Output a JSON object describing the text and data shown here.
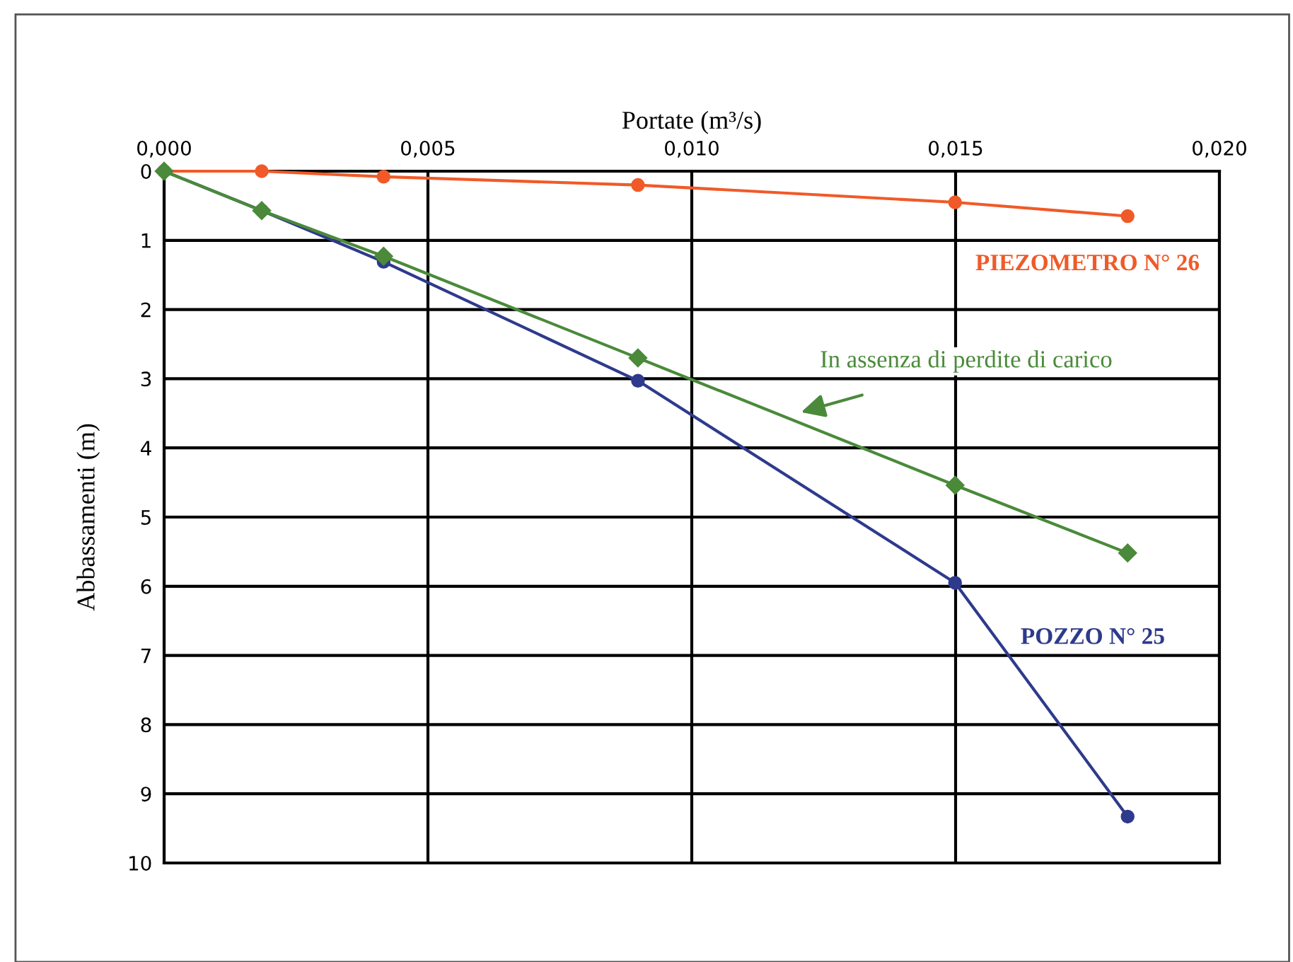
{
  "chart_data": {
    "type": "line",
    "xlabel": "Portate (m³/s)",
    "ylabel": "Abbassamenti (m)",
    "xlim": [
      0,
      0.02
    ],
    "xticks": [
      {
        "value": 0,
        "label": "0,000"
      },
      {
        "value": 0.005,
        "label": "0,005"
      },
      {
        "value": 0.01,
        "label": "0,010"
      },
      {
        "value": 0.015,
        "label": "0,015"
      },
      {
        "value": 0.02,
        "label": "0,020"
      }
    ],
    "ylim": [
      10,
      0
    ],
    "yticks": [
      0,
      1,
      2,
      3,
      4,
      5,
      6,
      7,
      8,
      9,
      10
    ],
    "grid": true,
    "legend": false,
    "line_style": "solid",
    "x": [
      0,
      0.00185,
      0.00416,
      0.00898,
      0.01499,
      0.01826
    ],
    "series": [
      {
        "name": "PIEZOMETRO N° 26",
        "color": "#f05a28",
        "marker": "circle",
        "values": [
          0,
          0,
          0.08,
          0.2,
          0.45,
          0.65
        ]
      },
      {
        "name": "In assenza di perdite di carico",
        "color": "#4a8a3a",
        "marker": "diamond",
        "values": [
          0,
          0.57,
          1.23,
          2.7,
          4.54,
          5.52
        ]
      },
      {
        "name": "POZZO N° 25",
        "color": "#2e3a8c",
        "marker": "circle",
        "values": [
          0,
          0.57,
          1.31,
          3.03,
          5.95,
          9.33
        ]
      }
    ]
  }
}
